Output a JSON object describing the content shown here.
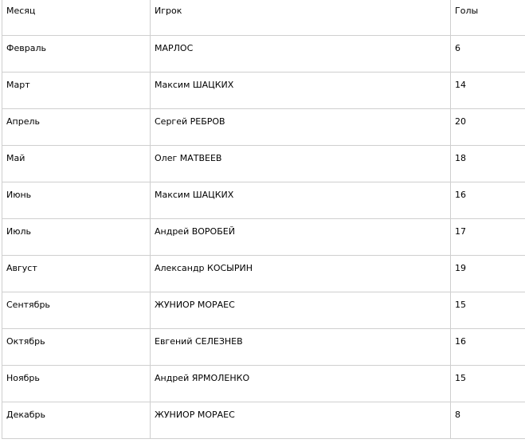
{
  "table": {
    "headers": [
      "Месяц",
      "Игрок",
      "Голы"
    ],
    "rows": [
      [
        "Февраль",
        "МАРЛОС",
        "6"
      ],
      [
        "Март",
        "Максим ШАЦКИХ",
        "14"
      ],
      [
        "Апрель",
        "Сергей РЕБРОВ",
        "20"
      ],
      [
        "Май",
        "Олег МАТВЕЕВ",
        "18"
      ],
      [
        "Июнь",
        "Максим ШАЦКИХ",
        "16"
      ],
      [
        "Июль",
        "Андрей ВОРОБЕЙ",
        "17"
      ],
      [
        "Август",
        "Александр КОСЫРИН",
        "19"
      ],
      [
        "Сентябрь",
        "ЖУНИОР МОРАЕС",
        "15"
      ],
      [
        "Октябрь",
        "Евгений СЕЛЕЗНЕВ",
        "16"
      ],
      [
        "Ноябрь",
        "Андрей ЯРМОЛЕНКО",
        "15"
      ],
      [
        "Декабрь",
        "ЖУНИОР МОРАЕС",
        "8"
      ]
    ]
  }
}
